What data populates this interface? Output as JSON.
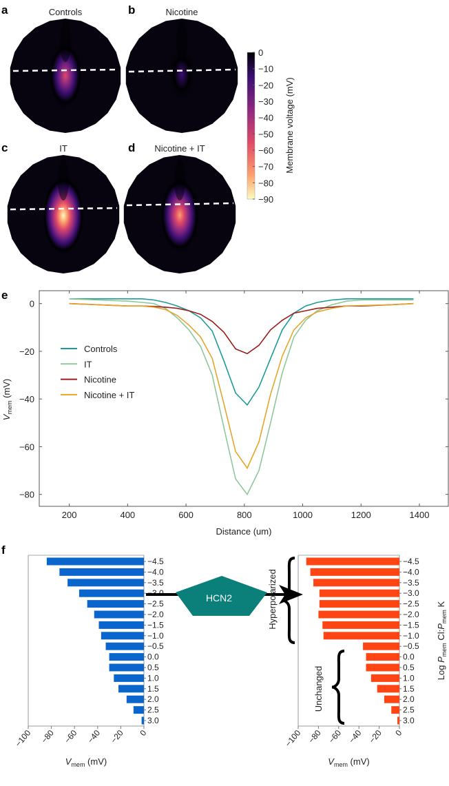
{
  "panel_letters": {
    "a": "a",
    "b": "b",
    "c": "c",
    "d": "d",
    "e": "e",
    "f": "f"
  },
  "hcn2_label": "HCN2",
  "brace_labels": {
    "hyperpolarized": "Hyperpolarized",
    "unchanged": "Unchanged"
  },
  "chart_data": [
    {
      "type": "heatmap",
      "panels": [
        {
          "letter": "a",
          "title": "Controls",
          "peak_mV": -55
        },
        {
          "letter": "b",
          "title": "Nicotine",
          "peak_mV": -25
        },
        {
          "letter": "c",
          "title": "IT",
          "peak_mV": -90
        },
        {
          "letter": "d",
          "title": "Nicotine + IT",
          "peak_mV": -80
        }
      ],
      "colorbar": {
        "label": "Membrane voltage (mV)",
        "ticks": [
          "0",
          "−10",
          "−20",
          "−30",
          "−40",
          "−50",
          "−60",
          "−70",
          "−80",
          "−90"
        ],
        "range": [
          -90,
          0
        ],
        "colormap": "magma",
        "colors": {
          "-90": "#fcfdbf",
          "-75": "#fe9f6d",
          "-55": "#de4968",
          "-35": "#8c2981",
          "-15": "#3b0f70",
          "0": "#000004"
        }
      }
    },
    {
      "type": "line",
      "xlabel": "Distance (um)",
      "ylabel_main": "V",
      "ylabel_sub": "mem",
      "ylabel_unit": " (mV)",
      "xlim": [
        100,
        1500
      ],
      "ylim": [
        -85,
        5
      ],
      "xticks": [
        200,
        400,
        600,
        800,
        1000,
        1200,
        1400
      ],
      "yticks": [
        0,
        -20,
        -40,
        -60,
        -80
      ],
      "ytick_labels": [
        "0",
        "−20",
        "−40",
        "−60",
        "−80"
      ],
      "legend_placement": "center-left",
      "x": [
        200,
        300,
        400,
        450,
        490,
        530,
        570,
        610,
        650,
        690,
        730,
        770,
        810,
        850,
        890,
        930,
        970,
        1010,
        1050,
        1100,
        1150,
        1200,
        1300,
        1380
      ],
      "series": [
        {
          "name": "Controls",
          "color": "#1a9a9a",
          "values": [
            2,
            2,
            2,
            2,
            1.5,
            0.5,
            -1,
            -3,
            -6,
            -11.5,
            -24,
            -37.5,
            -42.5,
            -35,
            -23,
            -11,
            -4,
            -1,
            0.5,
            1.5,
            2,
            2,
            2,
            2
          ]
        },
        {
          "name": "IT",
          "color": "#8fc79a",
          "values": [
            2,
            1.5,
            1,
            0.5,
            0,
            -2,
            -6,
            -11,
            -18,
            -30,
            -52,
            -73.5,
            -80,
            -70,
            -50,
            -29,
            -14,
            -7,
            -3,
            -0.5,
            1,
            1.5,
            1.5,
            1.5
          ]
        },
        {
          "name": "Nicotine",
          "color": "#9b1b1b",
          "values": [
            0,
            -0.5,
            -1,
            -1,
            -1.2,
            -1.5,
            -2,
            -3,
            -4.5,
            -7.5,
            -12,
            -19,
            -21,
            -17.5,
            -11,
            -7,
            -4,
            -3,
            -2,
            -1.5,
            -1,
            -1,
            -0.5,
            0
          ]
        },
        {
          "name": "Nicotine + IT",
          "color": "#e6a52a",
          "values": [
            0,
            -0.5,
            -1,
            -1,
            -1.5,
            -2.5,
            -5,
            -9,
            -14,
            -23,
            -42,
            -62,
            -69,
            -58,
            -38,
            -22,
            -11,
            -6,
            -3.5,
            -2,
            -1,
            -0.8,
            -0.5,
            0
          ]
        }
      ]
    },
    {
      "type": "bar",
      "orientation": "horizontal",
      "color": "#0a66cc",
      "categories": [
        "−4.5",
        "−4.0",
        "−3.5",
        "−3.0",
        "−2.5",
        "−2.0",
        "−1.5",
        "−1.0",
        "−0.5",
        "0.0",
        "0.5",
        "1.0",
        "1.5",
        "2.0",
        "2.5",
        "3.0"
      ],
      "values": [
        -84,
        -73,
        -66,
        -56,
        -49,
        -43,
        -39,
        -37,
        -33,
        -30,
        -30,
        -26,
        -22,
        -15,
        -9,
        -2
      ],
      "xlim": [
        -100,
        0
      ],
      "xticks": [
        "−100",
        "−80",
        "−60",
        "−40",
        "−20",
        "0"
      ],
      "xlabel_main": "V",
      "xlabel_sub": "mem",
      "xlabel_unit": " (mV)"
    },
    {
      "type": "bar",
      "orientation": "horizontal",
      "color": "#ff4514",
      "categories": [
        "−4.5",
        "−4.0",
        "−3.5",
        "−3.0",
        "−2.5",
        "−2.0",
        "−1.5",
        "−1.0",
        "−0.5",
        "0.0",
        "0.5",
        "1.0",
        "1.5",
        "2.0",
        "2.5",
        "3.0"
      ],
      "values": [
        -92,
        -88,
        -85,
        -79,
        -79,
        -80,
        -76,
        -75,
        -36,
        -33,
        -33,
        -28,
        -22,
        -15,
        -8,
        -2
      ],
      "xlim": [
        -100,
        0
      ],
      "xticks": [
        "−100",
        "−80",
        "−60",
        "−40",
        "−20",
        "0"
      ],
      "xlabel_main": "V",
      "xlabel_sub": "mem",
      "xlabel_unit": " (mV)",
      "ylabel": "Log P_mem Cl:P_mem K"
    }
  ]
}
